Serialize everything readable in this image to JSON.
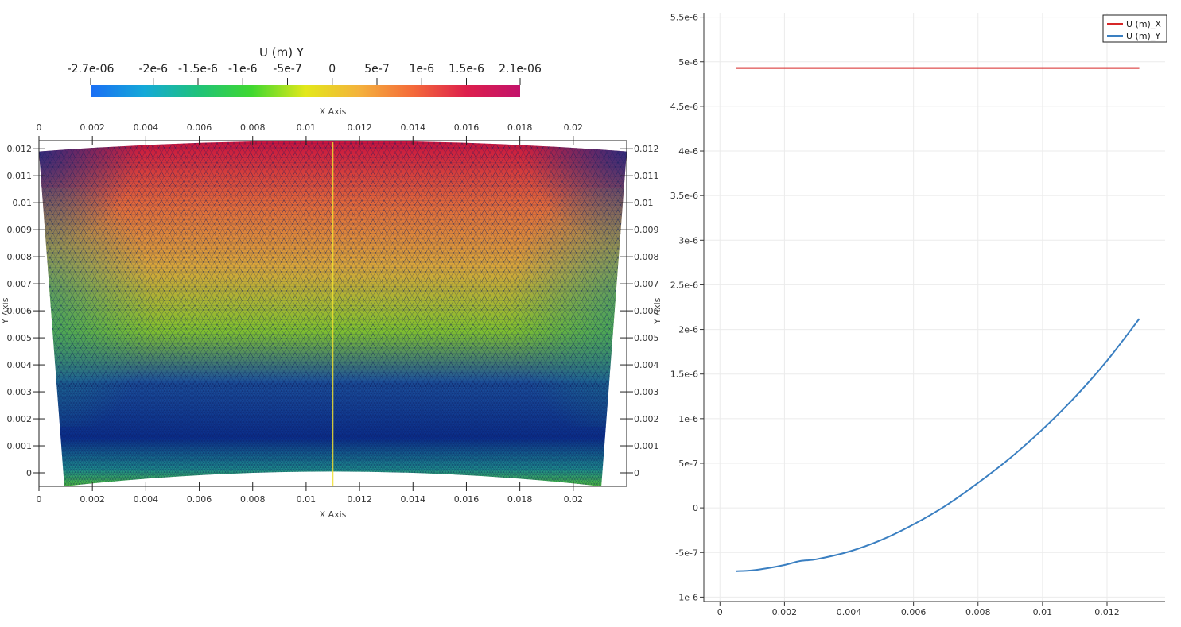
{
  "colorbar": {
    "title": "U (m) Y",
    "ticks": [
      "-2.7e-06",
      "-2e-6",
      "-1.5e-6",
      "-1e-6",
      "-5e-7",
      "0",
      "5e-7",
      "1e-6",
      "1.5e-6",
      "2.1e-06"
    ],
    "tick_values": [
      -2.7e-06,
      -2e-06,
      -1.5e-06,
      -1e-06,
      -5e-07,
      0,
      5e-07,
      1e-06,
      1.5e-06,
      2.1e-06
    ],
    "range": [
      -2.7e-06,
      2.1e-06
    ],
    "colors": [
      "#1a6ef5",
      "#14a9d8",
      "#1fc27a",
      "#3fd830",
      "#e3e81a",
      "#f4b23c",
      "#f46a3a",
      "#dd1f4c",
      "#c2126a"
    ]
  },
  "mesh_view": {
    "x_axis_title_top": "X Axis",
    "x_axis_title_bottom": "X Axis",
    "y_axis_title_left": "Y Axis",
    "y_axis_title_right": "Y Axis",
    "x_ticks": [
      "0",
      "0.002",
      "0.004",
      "0.006",
      "0.008",
      "0.01",
      "0.012",
      "0.014",
      "0.016",
      "0.018",
      "0.02"
    ],
    "x_tick_values": [
      0,
      0.002,
      0.004,
      0.006,
      0.008,
      0.01,
      0.012,
      0.014,
      0.016,
      0.018,
      0.02
    ],
    "y_ticks": [
      "0",
      "0.001",
      "0.002",
      "0.003",
      "0.004",
      "0.005",
      "0.006",
      "0.007",
      "0.008",
      "0.009",
      "0.01",
      "0.011",
      "0.012"
    ],
    "y_tick_values": [
      0,
      0.001,
      0.002,
      0.003,
      0.004,
      0.005,
      0.006,
      0.007,
      0.008,
      0.009,
      0.01,
      0.011,
      0.012
    ],
    "x_range": [
      0,
      0.022
    ],
    "y_range": [
      -0.0005,
      0.0123
    ],
    "probe_line_x": 0.011,
    "mesh_line_color": "#0b1a5c",
    "probe_line_color": "#f0e030"
  },
  "chart_data": {
    "type": "line",
    "title": "",
    "xlabel": "",
    "ylabel": "",
    "xlim": [
      -0.0005,
      0.0138
    ],
    "ylim": [
      -1.05e-06,
      5.55e-06
    ],
    "x_ticks": [
      "0",
      "0.002",
      "0.004",
      "0.006",
      "0.008",
      "0.01",
      "0.012"
    ],
    "x_tick_values": [
      0,
      0.002,
      0.004,
      0.006,
      0.008,
      0.01,
      0.012
    ],
    "y_ticks": [
      "5.5e-6",
      "5e-6",
      "4.5e-6",
      "4e-6",
      "3.5e-6",
      "3e-6",
      "2.5e-6",
      "2e-6",
      "1.5e-6",
      "1e-6",
      "5e-7",
      "0",
      "-5e-7",
      "-1e-6"
    ],
    "y_tick_values": [
      5.5e-06,
      5e-06,
      4.5e-06,
      4e-06,
      3.5e-06,
      3e-06,
      2.5e-06,
      2e-06,
      1.5e-06,
      1e-06,
      5e-07,
      0,
      -5e-07,
      -1e-06
    ],
    "grid": true,
    "legend": "top-right",
    "series": [
      {
        "name": "U (m)_X",
        "color": "#d62728",
        "x": [
          0.0005,
          0.002,
          0.004,
          0.006,
          0.008,
          0.01,
          0.012,
          0.013
        ],
        "y": [
          4.93e-06,
          4.93e-06,
          4.93e-06,
          4.93e-06,
          4.93e-06,
          4.93e-06,
          4.93e-06,
          4.93e-06
        ]
      },
      {
        "name": "U (m)_Y",
        "color": "#3a7fc1",
        "x": [
          0.0005,
          0.001,
          0.0015,
          0.002,
          0.0025,
          0.003,
          0.004,
          0.005,
          0.006,
          0.007,
          0.008,
          0.009,
          0.01,
          0.011,
          0.012,
          0.013
        ],
        "y": [
          -7.1e-07,
          -7e-07,
          -6.75e-07,
          -6.4e-07,
          -5.95e-07,
          -5.75e-07,
          -4.9e-07,
          -3.6e-07,
          -1.85e-07,
          2.5e-08,
          2.8e-07,
          5.6e-07,
          8.8e-07,
          1.24e-06,
          1.65e-06,
          2.12e-06
        ]
      }
    ]
  }
}
